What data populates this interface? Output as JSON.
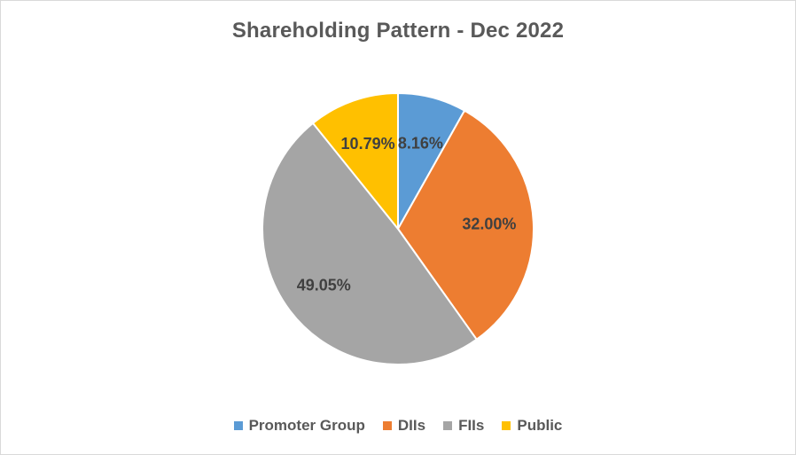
{
  "chart_data": {
    "type": "pie",
    "title": "Shareholding Pattern - Dec 2022",
    "categories": [
      "Promoter Group",
      "DIIs",
      "FIIs",
      "Public"
    ],
    "values": [
      8.16,
      32.0,
      49.05,
      10.79
    ],
    "labels": [
      "8.16%",
      "32.00%",
      "49.05%",
      "10.79%"
    ],
    "colors": [
      "#5b9bd5",
      "#ed7d31",
      "#a5a5a5",
      "#ffc000"
    ],
    "legend_position": "bottom",
    "start_angle_deg": 0,
    "direction": "clockwise"
  }
}
